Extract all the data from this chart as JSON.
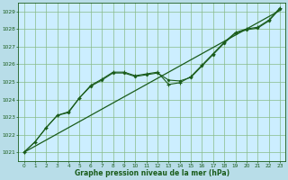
{
  "background_color": "#b8dde8",
  "plot_bg_color": "#cceeff",
  "grid_color": "#88bb88",
  "line_color": "#1a5c1a",
  "title": "Graphe pression niveau de la mer (hPa)",
  "title_color": "#1a5c1a",
  "xlim": [
    -0.5,
    23.5
  ],
  "ylim": [
    1020.5,
    1029.5
  ],
  "xticks": [
    0,
    1,
    2,
    3,
    4,
    5,
    6,
    7,
    8,
    9,
    10,
    11,
    12,
    13,
    14,
    15,
    16,
    17,
    18,
    19,
    20,
    21,
    22,
    23
  ],
  "yticks": [
    1021,
    1022,
    1023,
    1024,
    1025,
    1026,
    1027,
    1028,
    1029
  ],
  "line_straight": [
    1021.0,
    1021.35,
    1021.7,
    1022.05,
    1022.4,
    1022.75,
    1023.1,
    1023.45,
    1023.8,
    1024.15,
    1024.5,
    1024.85,
    1025.2,
    1025.55,
    1025.9,
    1026.25,
    1026.6,
    1026.95,
    1027.3,
    1027.65,
    1028.0,
    1028.35,
    1028.7,
    1029.05
  ],
  "line_markers1": [
    1021.0,
    1021.6,
    1022.4,
    1023.1,
    1023.3,
    1024.1,
    1024.8,
    1025.15,
    1025.55,
    1025.55,
    1025.35,
    1025.45,
    1025.55,
    1024.85,
    1024.95,
    1025.3,
    1025.95,
    1026.6,
    1027.25,
    1027.8,
    1028.0,
    1028.1,
    1028.5,
    1029.2
  ],
  "line_markers2": [
    1021.0,
    1021.6,
    1022.4,
    1023.1,
    1023.25,
    1024.1,
    1024.75,
    1025.1,
    1025.5,
    1025.5,
    1025.3,
    1025.4,
    1025.5,
    1025.1,
    1025.05,
    1025.25,
    1025.9,
    1026.55,
    1027.2,
    1027.75,
    1027.95,
    1028.05,
    1028.45,
    1029.15
  ]
}
